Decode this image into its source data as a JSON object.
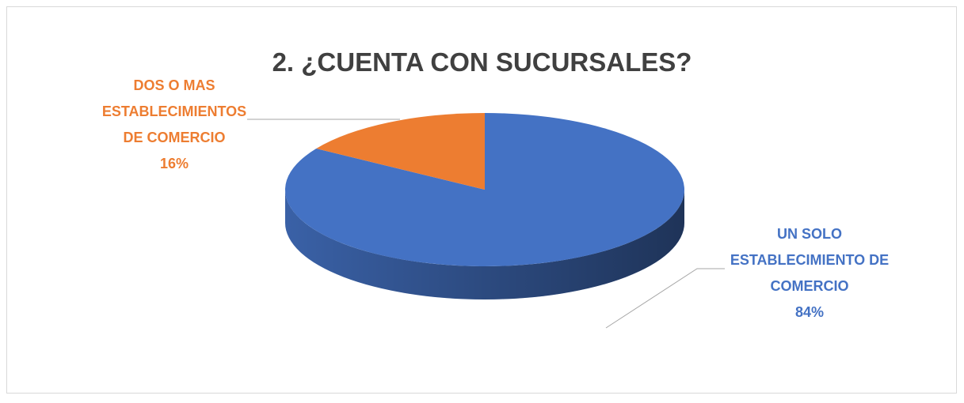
{
  "chart_data": {
    "type": "pie",
    "title": "2. ¿CUENTA CON SUCURSALES?",
    "categories": [
      "UN SOLO ESTABLECIMIENTO DE COMERCIO",
      "DOS O MAS ESTABLECIMIENTOS DE COMERCIO"
    ],
    "values": [
      84,
      16
    ],
    "value_labels": [
      "84%",
      "16%"
    ],
    "colors": [
      "#4472c4",
      "#ed7d31"
    ]
  }
}
